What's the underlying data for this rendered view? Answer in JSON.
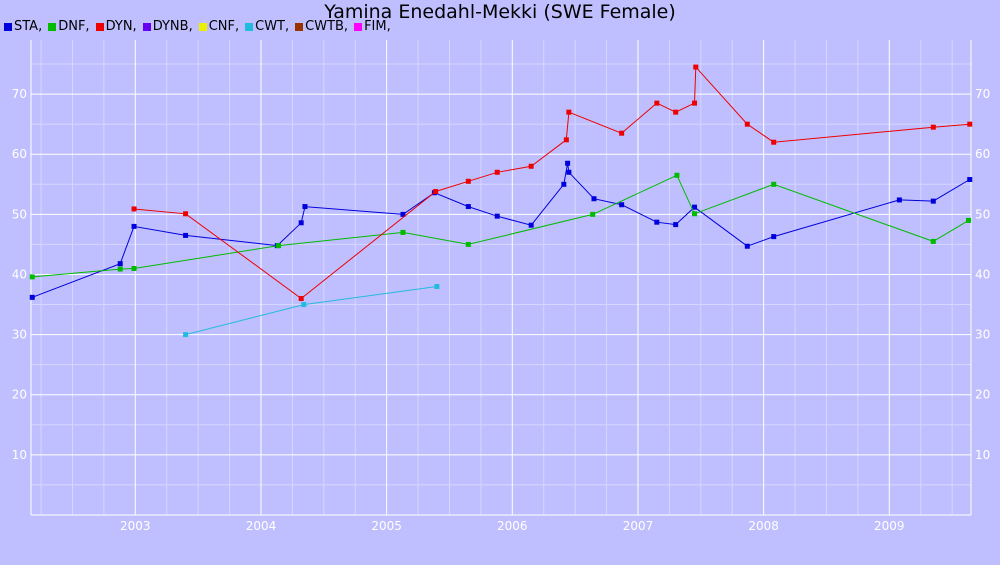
{
  "chart_data": {
    "type": "line",
    "title": "Yamina Enedahl-Mekki (SWE Female)",
    "legend": [
      "STA,",
      "DNF,",
      "DYN,",
      "DYNB,",
      "CNF,",
      "CWT,",
      "CWTB,",
      "FIM,"
    ],
    "legend_colors": [
      "#0000dd",
      "#00bb00",
      "#ee0000",
      "#6600ee",
      "#eeee00",
      "#22bbdd",
      "#993300",
      "#ff00ff"
    ],
    "legend_placement": "top-left",
    "grid": true,
    "xlim": [
      2002.17,
      2009.65
    ],
    "ylim": [
      0,
      79
    ],
    "x_ticks": [
      2003,
      2004,
      2005,
      2006,
      2007,
      2008,
      2009
    ],
    "x_tick_labels": [
      "2003",
      "2004",
      "2005",
      "2006",
      "2007",
      "2008",
      "2009"
    ],
    "y_ticks": [
      10,
      20,
      30,
      40,
      50,
      60,
      70
    ],
    "y_tick_labels": [
      "10",
      "20",
      "30",
      "40",
      "50",
      "60",
      "70"
    ],
    "series": [
      {
        "name": "STA",
        "color": "#0000dd",
        "points": [
          [
            2002.18,
            36.2
          ],
          [
            2002.88,
            41.8
          ],
          [
            2002.99,
            48.0
          ],
          [
            2003.4,
            46.5
          ],
          [
            2004.13,
            44.8
          ],
          [
            2004.32,
            48.6
          ],
          [
            2004.35,
            51.3
          ],
          [
            2005.13,
            50.0
          ],
          [
            2005.38,
            53.6
          ],
          [
            2005.65,
            51.3
          ],
          [
            2005.88,
            49.7
          ],
          [
            2006.15,
            48.2
          ],
          [
            2006.41,
            55.0
          ],
          [
            2006.44,
            58.5
          ],
          [
            2006.45,
            57.0
          ],
          [
            2006.65,
            52.6
          ],
          [
            2006.87,
            51.6
          ],
          [
            2007.15,
            48.7
          ],
          [
            2007.3,
            48.3
          ],
          [
            2007.45,
            51.2
          ],
          [
            2007.87,
            44.7
          ],
          [
            2008.08,
            46.3
          ],
          [
            2009.08,
            52.4
          ],
          [
            2009.35,
            52.2
          ],
          [
            2009.64,
            55.8
          ]
        ]
      },
      {
        "name": "DNF",
        "color": "#00bb00",
        "points": [
          [
            2002.18,
            39.6
          ],
          [
            2002.88,
            40.9
          ],
          [
            2002.99,
            41.0
          ],
          [
            2004.14,
            44.8
          ],
          [
            2005.13,
            47.0
          ],
          [
            2005.65,
            45.0
          ],
          [
            2006.64,
            50.0
          ],
          [
            2007.31,
            56.5
          ],
          [
            2007.45,
            50.1
          ],
          [
            2008.08,
            55.0
          ],
          [
            2009.35,
            45.5
          ],
          [
            2009.63,
            49.0
          ]
        ]
      },
      {
        "name": "DYN",
        "color": "#ee0000",
        "points": [
          [
            2002.99,
            50.9
          ],
          [
            2003.4,
            50.1
          ],
          [
            2004.32,
            36.0
          ],
          [
            2005.39,
            53.8
          ],
          [
            2005.65,
            55.5
          ],
          [
            2005.88,
            57.0
          ],
          [
            2006.15,
            58.0
          ],
          [
            2006.43,
            62.4
          ],
          [
            2006.45,
            67.0
          ],
          [
            2006.87,
            63.5
          ],
          [
            2007.15,
            68.5
          ],
          [
            2007.3,
            67.0
          ],
          [
            2007.45,
            68.5
          ],
          [
            2007.46,
            74.5
          ],
          [
            2007.87,
            65.0
          ],
          [
            2008.08,
            62.0
          ],
          [
            2009.35,
            64.5
          ],
          [
            2009.64,
            65.0
          ]
        ]
      },
      {
        "name": "CWT",
        "color": "#22bbdd",
        "points": [
          [
            2003.4,
            30.0
          ],
          [
            2004.34,
            35.0
          ],
          [
            2005.4,
            38.0
          ]
        ]
      }
    ]
  }
}
